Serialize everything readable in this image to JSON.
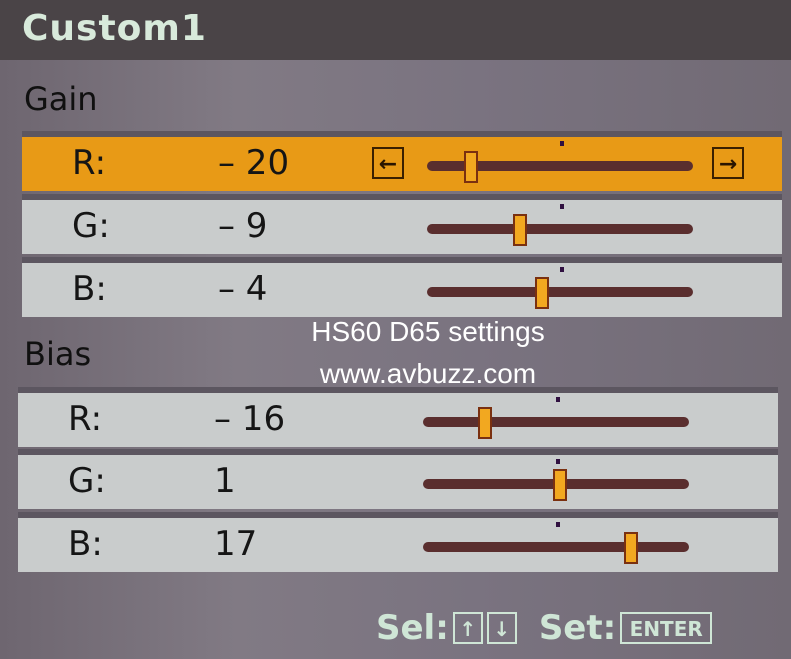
{
  "title": "Custom1",
  "slider_range": [
    -30,
    30
  ],
  "gain": {
    "label": "Gain",
    "rows": [
      {
        "label": "R:",
        "value": "– 20",
        "num": -20,
        "selected": true
      },
      {
        "label": "G:",
        "value": "– 9",
        "num": -9,
        "selected": false
      },
      {
        "label": "B:",
        "value": "– 4",
        "num": -4,
        "selected": false
      }
    ]
  },
  "bias": {
    "label": "Bias",
    "rows": [
      {
        "label": "R:",
        "value": "– 16",
        "num": -16,
        "selected": false
      },
      {
        "label": "G:",
        "value": "1",
        "num": 1,
        "selected": false
      },
      {
        "label": "B:",
        "value": "17",
        "num": 17,
        "selected": false
      }
    ]
  },
  "watermark": {
    "line1": "HS60 D65 settings",
    "line2": "www.avbuzz.com"
  },
  "footer": {
    "sel_label": "Sel:",
    "up": "↑",
    "down": "↓",
    "set_label": "Set:",
    "enter": "ENTER"
  },
  "arrows": {
    "left": "←",
    "right": "→"
  },
  "colors": {
    "selected": "#e89a16",
    "row": "#c9cccc",
    "thumb": "#f2a820"
  }
}
